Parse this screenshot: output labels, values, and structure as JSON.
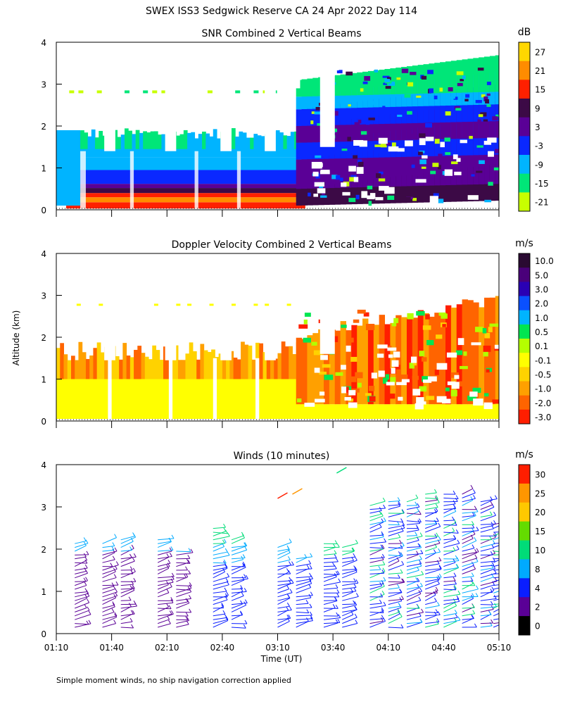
{
  "title": "SWEX ISS3 Sedgwick Reserve CA  24 Apr 2022 Day 114",
  "ylabel": "Altitude (km)",
  "xlabel": "Time (UT)",
  "footnote": "Simple moment winds, no ship navigation correction applied",
  "x_ticks": [
    "01:10",
    "01:40",
    "02:10",
    "02:40",
    "03:10",
    "03:40",
    "04:10",
    "04:40",
    "05:10"
  ],
  "y_ticks": [
    "0",
    "1",
    "2",
    "3",
    "4"
  ],
  "chart_data": [
    {
      "type": "heatmap",
      "title": "SNR Combined 2 Vertical Beams",
      "xlim": [
        "01:10",
        "05:10"
      ],
      "ylim": [
        0,
        4
      ],
      "ylabel": "Altitude (km)",
      "grid": false,
      "colorbar": {
        "unit": "dB",
        "labels": [
          "27",
          "21",
          "15",
          "9",
          "3",
          "-3",
          "-9",
          "-15",
          "-21"
        ],
        "colors": [
          "#ffd700",
          "#ff8c00",
          "#ff2000",
          "#3c0a46",
          "#5a0096",
          "#0a28ff",
          "#00b4ff",
          "#00e678",
          "#c8ff00"
        ]
      }
    },
    {
      "type": "heatmap",
      "title": "Doppler Velocity Combined 2 Vertical Beams",
      "xlim": [
        "01:10",
        "05:10"
      ],
      "ylim": [
        0,
        4
      ],
      "ylabel": "Altitude (km)",
      "grid": false,
      "colorbar": {
        "unit": "m/s",
        "labels": [
          "10.0",
          "5.0",
          "3.0",
          "2.0",
          "1.0",
          "0.5",
          "0.1",
          "-0.1",
          "-0.5",
          "-1.0",
          "-2.0",
          "-3.0"
        ],
        "colors": [
          "#2a0a32",
          "#4a007a",
          "#2a00b4",
          "#0a50ff",
          "#00b4ff",
          "#00e650",
          "#b4ff00",
          "#ffff00",
          "#ffd200",
          "#ffa000",
          "#ff6400",
          "#ff1e00"
        ]
      }
    },
    {
      "type": "scatter",
      "title": "Winds (10 minutes)",
      "xlim": [
        "01:10",
        "05:10"
      ],
      "ylim": [
        0,
        4
      ],
      "xlabel": "Time (UT)",
      "ylabel": "Altitude (km)",
      "grid": false,
      "colorbar": {
        "unit": "m/s",
        "labels": [
          "30",
          "25",
          "20",
          "15",
          "10",
          "8",
          "4",
          "2",
          "0"
        ],
        "colors": [
          "#ff1e00",
          "#ff9600",
          "#ffc800",
          "#64dc00",
          "#00dc78",
          "#00aaff",
          "#0a1eff",
          "#5a0096",
          "#000000"
        ]
      },
      "wind_profile_times": [
        "01:20",
        "01:35",
        "01:45",
        "02:05",
        "02:15",
        "02:35",
        "02:45",
        "03:10",
        "03:20",
        "03:35",
        "03:45",
        "04:00",
        "04:10",
        "04:20",
        "04:30",
        "04:40",
        "04:50",
        "05:00",
        "05:07"
      ],
      "wind_profile_tops_km": [
        2.2,
        2.2,
        2.3,
        2.3,
        2.0,
        2.5,
        2.3,
        2.1,
        1.8,
        2.2,
        2.1,
        3.1,
        3.2,
        3.2,
        3.3,
        3.3,
        3.3,
        3.2,
        2.6
      ]
    }
  ]
}
